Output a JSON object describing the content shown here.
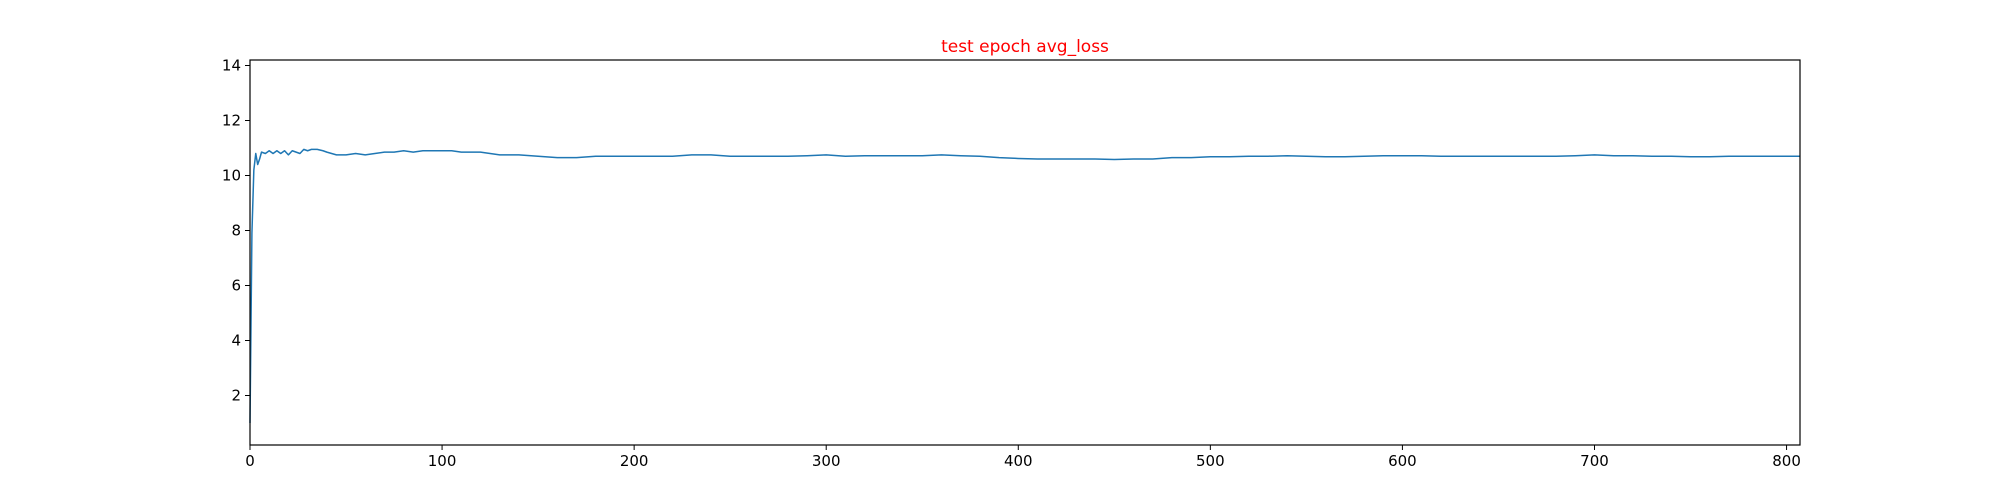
{
  "chart_data": {
    "type": "line",
    "title": "test epoch avg_loss",
    "xlabel": "",
    "ylabel": "",
    "xlim": [
      0,
      807
    ],
    "ylim": [
      0.2,
      14.2
    ],
    "x_ticks": [
      0,
      100,
      200,
      300,
      400,
      500,
      600,
      700,
      800
    ],
    "y_ticks": [
      2,
      4,
      6,
      8,
      10,
      12,
      14
    ],
    "grid": false,
    "legend": "none",
    "colors": {
      "title": "#ff0000",
      "line": "#1f77b4",
      "axes": "#000000"
    },
    "series": [
      {
        "x": [
          0,
          1,
          2,
          3,
          4,
          5,
          6,
          8,
          10,
          12,
          14,
          16,
          18,
          20,
          22,
          24,
          26,
          28,
          30,
          32,
          35,
          38,
          40,
          45,
          50,
          55,
          60,
          65,
          70,
          75,
          80,
          85,
          90,
          95,
          100,
          105,
          110,
          115,
          120,
          125,
          130,
          140,
          150,
          160,
          170,
          180,
          190,
          200,
          210,
          220,
          230,
          240,
          250,
          260,
          270,
          280,
          290,
          300,
          310,
          320,
          330,
          340,
          350,
          360,
          370,
          380,
          390,
          400,
          410,
          420,
          430,
          440,
          450,
          460,
          470,
          480,
          490,
          500,
          510,
          520,
          530,
          540,
          550,
          560,
          570,
          580,
          590,
          600,
          610,
          620,
          630,
          640,
          650,
          660,
          670,
          680,
          690,
          700,
          710,
          720,
          730,
          740,
          750,
          760,
          770,
          780,
          790,
          800,
          807
        ],
        "values": [
          1.0,
          7.9,
          10.2,
          10.8,
          10.4,
          10.6,
          10.85,
          10.8,
          10.9,
          10.8,
          10.9,
          10.8,
          10.9,
          10.75,
          10.9,
          10.85,
          10.8,
          10.95,
          10.9,
          10.95,
          10.95,
          10.9,
          10.85,
          10.75,
          10.75,
          10.8,
          10.75,
          10.8,
          10.85,
          10.85,
          10.9,
          10.85,
          10.9,
          10.9,
          10.9,
          10.9,
          10.85,
          10.85,
          10.85,
          10.8,
          10.75,
          10.75,
          10.7,
          10.65,
          10.65,
          10.7,
          10.7,
          10.7,
          10.7,
          10.7,
          10.75,
          10.75,
          10.7,
          10.7,
          10.7,
          10.7,
          10.72,
          10.75,
          10.7,
          10.72,
          10.72,
          10.72,
          10.72,
          10.75,
          10.72,
          10.7,
          10.65,
          10.62,
          10.6,
          10.6,
          10.6,
          10.6,
          10.58,
          10.6,
          10.6,
          10.65,
          10.65,
          10.68,
          10.68,
          10.7,
          10.7,
          10.72,
          10.7,
          10.68,
          10.68,
          10.7,
          10.72,
          10.72,
          10.72,
          10.7,
          10.7,
          10.7,
          10.7,
          10.7,
          10.7,
          10.7,
          10.72,
          10.75,
          10.72,
          10.72,
          10.7,
          10.7,
          10.68,
          10.68,
          10.7,
          10.7,
          10.7,
          10.7,
          10.7
        ]
      }
    ]
  }
}
